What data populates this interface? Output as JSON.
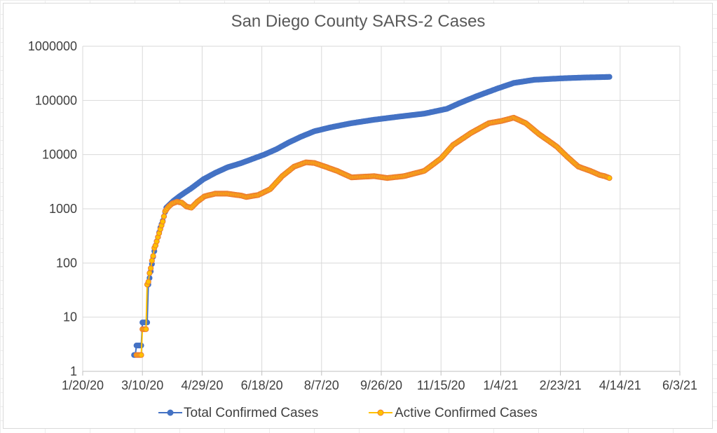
{
  "chart_data": {
    "type": "line",
    "title": "San Diego County SARS-2 Cases",
    "xlabel": "",
    "ylabel": "",
    "y_scale": "log",
    "ylim": [
      1,
      1000000
    ],
    "xlim": [
      "1/20/20",
      "6/3/21"
    ],
    "x_ticks": [
      "1/20/20",
      "3/10/20",
      "4/29/20",
      "6/18/20",
      "8/7/20",
      "9/26/20",
      "11/15/20",
      "1/4/21",
      "2/23/21",
      "4/14/21",
      "6/3/21"
    ],
    "y_ticks": [
      "1",
      "10",
      "100",
      "1000",
      "10000",
      "100000",
      "1000000"
    ],
    "grid": true,
    "legend_position": "bottom",
    "series": [
      {
        "name": "Total Confirmed Cases",
        "color": "#4472c4",
        "points": [
          [
            "2020-03-03",
            2
          ],
          [
            "2020-03-04",
            2
          ],
          [
            "2020-03-05",
            3
          ],
          [
            "2020-03-06",
            3
          ],
          [
            "2020-03-07",
            3
          ],
          [
            "2020-03-08",
            3
          ],
          [
            "2020-03-09",
            3
          ],
          [
            "2020-03-10",
            8
          ],
          [
            "2020-03-11",
            8
          ],
          [
            "2020-03-12",
            8
          ],
          [
            "2020-03-14",
            8
          ],
          [
            "2020-03-15",
            40
          ],
          [
            "2020-03-17",
            70
          ],
          [
            "2020-03-19",
            130
          ],
          [
            "2020-03-21",
            210
          ],
          [
            "2020-03-23",
            300
          ],
          [
            "2020-03-25",
            450
          ],
          [
            "2020-03-27",
            600
          ],
          [
            "2020-03-30",
            1050
          ],
          [
            "2020-04-05",
            1400
          ],
          [
            "2020-04-10",
            1700
          ],
          [
            "2020-04-20",
            2400
          ],
          [
            "2020-04-30",
            3500
          ],
          [
            "2020-05-10",
            4600
          ],
          [
            "2020-05-20",
            5800
          ],
          [
            "2020-06-01",
            7000
          ],
          [
            "2020-06-10",
            8300
          ],
          [
            "2020-06-20",
            10000
          ],
          [
            "2020-06-30",
            12500
          ],
          [
            "2020-07-10",
            16500
          ],
          [
            "2020-07-20",
            21000
          ],
          [
            "2020-08-01",
            27000
          ],
          [
            "2020-08-15",
            32000
          ],
          [
            "2020-09-01",
            38000
          ],
          [
            "2020-09-20",
            44000
          ],
          [
            "2020-10-10",
            50000
          ],
          [
            "2020-11-01",
            57000
          ],
          [
            "2020-11-20",
            70000
          ],
          [
            "2020-12-01",
            90000
          ],
          [
            "2020-12-15",
            120000
          ],
          [
            "2021-01-01",
            165000
          ],
          [
            "2021-01-15",
            210000
          ],
          [
            "2021-02-01",
            240000
          ],
          [
            "2021-02-23",
            255000
          ],
          [
            "2021-03-15",
            265000
          ],
          [
            "2021-04-01",
            270000
          ],
          [
            "2021-04-05",
            272000
          ]
        ]
      },
      {
        "name": "Active Confirmed Cases",
        "color": "#ed7d31",
        "line_color": "#ffc000",
        "points": [
          [
            "2020-03-05",
            2
          ],
          [
            "2020-03-06",
            2
          ],
          [
            "2020-03-07",
            2
          ],
          [
            "2020-03-08",
            2
          ],
          [
            "2020-03-09",
            2
          ],
          [
            "2020-03-10",
            6
          ],
          [
            "2020-03-11",
            6
          ],
          [
            "2020-03-12",
            6
          ],
          [
            "2020-03-13",
            6
          ],
          [
            "2020-03-14",
            40
          ],
          [
            "2020-03-15",
            45
          ],
          [
            "2020-03-16",
            65
          ],
          [
            "2020-03-17",
            80
          ],
          [
            "2020-03-18",
            110
          ],
          [
            "2020-03-19",
            135
          ],
          [
            "2020-03-20",
            190
          ],
          [
            "2020-03-21",
            210
          ],
          [
            "2020-03-22",
            250
          ],
          [
            "2020-03-23",
            300
          ],
          [
            "2020-03-25",
            420
          ],
          [
            "2020-03-27",
            580
          ],
          [
            "2020-03-29",
            900
          ],
          [
            "2020-04-01",
            1100
          ],
          [
            "2020-04-04",
            1250
          ],
          [
            "2020-04-08",
            1350
          ],
          [
            "2020-04-12",
            1300
          ],
          [
            "2020-04-16",
            1100
          ],
          [
            "2020-04-20",
            1050
          ],
          [
            "2020-04-25",
            1350
          ],
          [
            "2020-05-01",
            1700
          ],
          [
            "2020-05-10",
            1900
          ],
          [
            "2020-05-20",
            1900
          ],
          [
            "2020-06-01",
            1750
          ],
          [
            "2020-06-05",
            1650
          ],
          [
            "2020-06-15",
            1800
          ],
          [
            "2020-06-25",
            2300
          ],
          [
            "2020-07-05",
            4000
          ],
          [
            "2020-07-15",
            6000
          ],
          [
            "2020-07-25",
            7200
          ],
          [
            "2020-08-01",
            7000
          ],
          [
            "2020-08-10",
            6000
          ],
          [
            "2020-08-20",
            5000
          ],
          [
            "2020-09-01",
            3800
          ],
          [
            "2020-09-10",
            3900
          ],
          [
            "2020-09-20",
            4000
          ],
          [
            "2020-10-01",
            3700
          ],
          [
            "2020-10-15",
            4000
          ],
          [
            "2020-11-01",
            5000
          ],
          [
            "2020-11-15",
            8500
          ],
          [
            "2020-11-25",
            15000
          ],
          [
            "2020-12-10",
            25000
          ],
          [
            "2020-12-25",
            38000
          ],
          [
            "2021-01-05",
            42000
          ],
          [
            "2021-01-15",
            48000
          ],
          [
            "2021-01-25",
            38000
          ],
          [
            "2021-02-05",
            24000
          ],
          [
            "2021-02-20",
            14000
          ],
          [
            "2021-03-01",
            9000
          ],
          [
            "2021-03-10",
            6000
          ],
          [
            "2021-03-20",
            5000
          ],
          [
            "2021-03-28",
            4200
          ],
          [
            "2021-04-01",
            4000
          ],
          [
            "2021-04-05",
            3700
          ]
        ]
      }
    ]
  }
}
